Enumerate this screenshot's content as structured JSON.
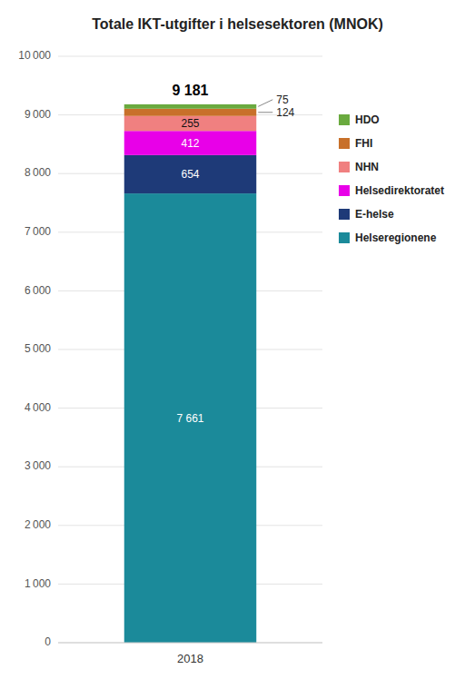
{
  "chart_data": {
    "type": "bar",
    "stacked": true,
    "title": "Totale IKT-utgifter i helsesektoren (MNOK)",
    "categories": [
      "2018"
    ],
    "series": [
      {
        "name": "Helseregionene",
        "color": "#1b8a9a",
        "values": [
          7661
        ],
        "value_labels": [
          "7 661"
        ]
      },
      {
        "name": "E-helse",
        "color": "#1e3a78",
        "values": [
          654
        ]
      },
      {
        "name": "Helsedirektoratet",
        "color": "#e800e8",
        "values": [
          412
        ]
      },
      {
        "name": "NHN",
        "color": "#f08080",
        "values": [
          255
        ]
      },
      {
        "name": "FHI",
        "color": "#c8702a",
        "values": [
          124
        ]
      },
      {
        "name": "HDO",
        "color": "#6aaa3f",
        "values": [
          75
        ]
      }
    ],
    "data_labels": true,
    "annotations": [
      {
        "text": "9 181",
        "y": 9181
      }
    ],
    "ylim": [
      0,
      10000
    ],
    "yticks": [
      0,
      {
        "value": 1000,
        "label": "1 000"
      },
      {
        "value": 2000,
        "label": "2 000"
      },
      {
        "value": 3000,
        "label": "3 000"
      },
      {
        "value": 4000,
        "label": "4 000"
      },
      {
        "value": 5000,
        "label": "5 000"
      },
      {
        "value": 6000,
        "label": "6 000"
      },
      {
        "value": 7000,
        "label": "7 000"
      },
      {
        "value": 8000,
        "label": "8 000"
      },
      {
        "value": 9000,
        "label": "9 000"
      },
      {
        "value": 10000,
        "label": "10 000"
      }
    ],
    "grid": true,
    "legend": "right"
  }
}
